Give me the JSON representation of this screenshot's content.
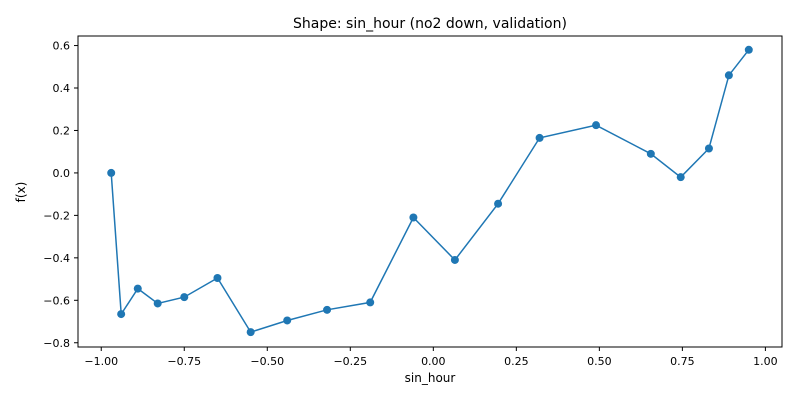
{
  "chart_data": {
    "type": "line",
    "title": "Shape: sin_hour (no2 down, validation)",
    "xlabel": "sin_hour",
    "ylabel": "f(x)",
    "xlim": [
      -1.07,
      1.05
    ],
    "ylim": [
      -0.82,
      0.645
    ],
    "xticks": [
      -1.0,
      -0.75,
      -0.5,
      -0.25,
      0.0,
      0.25,
      0.5,
      0.75,
      1.0
    ],
    "xtick_labels": [
      "−1.00",
      "−0.75",
      "−0.50",
      "−0.25",
      "0.00",
      "0.25",
      "0.50",
      "0.75",
      "1.00"
    ],
    "yticks": [
      -0.8,
      -0.6,
      -0.4,
      -0.2,
      0.0,
      0.2,
      0.4,
      0.6
    ],
    "ytick_labels": [
      "−0.8",
      "−0.6",
      "−0.4",
      "−0.2",
      "0.0",
      "0.2",
      "0.4",
      "0.6"
    ],
    "grid": false,
    "markers": "circle",
    "color": "#1f77b4",
    "series": [
      {
        "x": [
          -0.97,
          -0.94,
          -0.89,
          -0.83,
          -0.75,
          -0.65,
          -0.55,
          -0.44,
          -0.32,
          -0.19,
          -0.06,
          0.065,
          0.195,
          0.32,
          0.49,
          0.655,
          0.745,
          0.83,
          0.89,
          0.95
        ],
        "y": [
          0.0,
          -0.665,
          -0.545,
          -0.615,
          -0.585,
          -0.495,
          -0.75,
          -0.695,
          -0.645,
          -0.61,
          -0.21,
          -0.41,
          -0.145,
          0.165,
          0.225,
          0.09,
          -0.02,
          0.115,
          0.46,
          0.58
        ]
      }
    ]
  }
}
